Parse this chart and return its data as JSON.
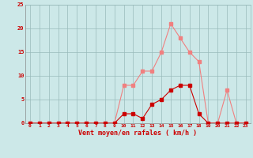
{
  "hours": [
    0,
    1,
    2,
    3,
    4,
    5,
    6,
    7,
    8,
    9,
    10,
    11,
    12,
    13,
    14,
    15,
    16,
    17,
    18,
    19,
    20,
    21,
    22,
    23
  ],
  "rafales": [
    0,
    0,
    0,
    0,
    0,
    0,
    0,
    0,
    0,
    0,
    8,
    8,
    11,
    11,
    15,
    21,
    18,
    15,
    13,
    0,
    0,
    7,
    0,
    0
  ],
  "vent_moyen": [
    0,
    0,
    0,
    0,
    0,
    0,
    0,
    0,
    0,
    0,
    2,
    2,
    1,
    4,
    5,
    7,
    8,
    8,
    2,
    0,
    0,
    0,
    0,
    0
  ],
  "color_rafales": "#F08080",
  "color_vent": "#CC0000",
  "bg_color": "#CCE8E8",
  "grid_color": "#99BBBB",
  "axis_color": "#CC0000",
  "xlabel": "Vent moyen/en rafales ( km/h )",
  "ylim": [
    0,
    25
  ],
  "yticks": [
    0,
    5,
    10,
    15,
    20,
    25
  ],
  "marker_size": 2.5,
  "linewidth": 0.8
}
